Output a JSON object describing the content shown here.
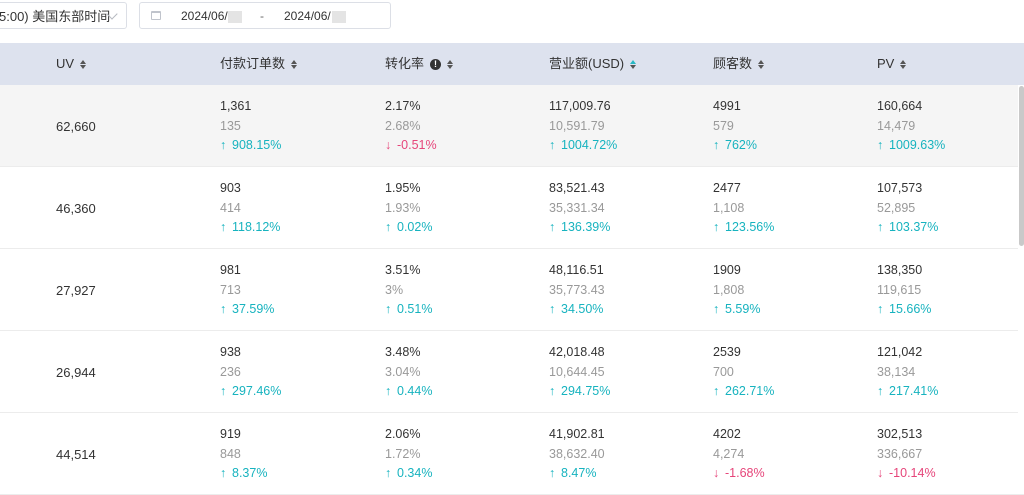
{
  "toolbar": {
    "timezone_label": "5:00) 美国东部时间",
    "date_start": "2024/06/",
    "date_sep": "-",
    "date_end": "2024/06/"
  },
  "columns": [
    {
      "label": "UV"
    },
    {
      "label": "付款订单数"
    },
    {
      "label": "转化率"
    },
    {
      "label": "营业额(USD)"
    },
    {
      "label": "顾客数"
    },
    {
      "label": "PV"
    }
  ],
  "rows": [
    {
      "uv": "62,660",
      "cells": [
        {
          "value": "1,361",
          "prev": "135",
          "change": "908.15%",
          "arrow": "↑"
        },
        {
          "value": "2.17%",
          "prev": "2.68%",
          "change": "-0.51%",
          "arrow": "↓"
        },
        {
          "value": "117,009.76",
          "prev": "10,591.79",
          "change": "1004.72%",
          "arrow": "↑"
        },
        {
          "value": "4991",
          "prev": "579",
          "change": "762%",
          "arrow": "↑"
        },
        {
          "value": "160,664",
          "prev": "14,479",
          "change": "1009.63%",
          "arrow": "↑"
        }
      ]
    },
    {
      "uv": "46,360",
      "cells": [
        {
          "value": "903",
          "prev": "414",
          "change": "118.12%",
          "arrow": "↑"
        },
        {
          "value": "1.95%",
          "prev": "1.93%",
          "change": "0.02%",
          "arrow": "↑"
        },
        {
          "value": "83,521.43",
          "prev": "35,331.34",
          "change": "136.39%",
          "arrow": "↑"
        },
        {
          "value": "2477",
          "prev": "1,108",
          "change": "123.56%",
          "arrow": "↑"
        },
        {
          "value": "107,573",
          "prev": "52,895",
          "change": "103.37%",
          "arrow": "↑"
        }
      ]
    },
    {
      "uv": "27,927",
      "cells": [
        {
          "value": "981",
          "prev": "713",
          "change": "37.59%",
          "arrow": "↑"
        },
        {
          "value": "3.51%",
          "prev": "3%",
          "change": "0.51%",
          "arrow": "↑"
        },
        {
          "value": "48,116.51",
          "prev": "35,773.43",
          "change": "34.50%",
          "arrow": "↑"
        },
        {
          "value": "1909",
          "prev": "1,808",
          "change": "5.59%",
          "arrow": "↑"
        },
        {
          "value": "138,350",
          "prev": "119,615",
          "change": "15.66%",
          "arrow": "↑"
        }
      ]
    },
    {
      "uv": "26,944",
      "cells": [
        {
          "value": "938",
          "prev": "236",
          "change": "297.46%",
          "arrow": "↑"
        },
        {
          "value": "3.48%",
          "prev": "3.04%",
          "change": "0.44%",
          "arrow": "↑"
        },
        {
          "value": "42,018.48",
          "prev": "10,644.45",
          "change": "294.75%",
          "arrow": "↑"
        },
        {
          "value": "2539",
          "prev": "700",
          "change": "262.71%",
          "arrow": "↑"
        },
        {
          "value": "121,042",
          "prev": "38,134",
          "change": "217.41%",
          "arrow": "↑"
        }
      ]
    },
    {
      "uv": "44,514",
      "cells": [
        {
          "value": "919",
          "prev": "848",
          "change": "8.37%",
          "arrow": "↑"
        },
        {
          "value": "2.06%",
          "prev": "1.72%",
          "change": "0.34%",
          "arrow": "↑"
        },
        {
          "value": "41,902.81",
          "prev": "38,632.40",
          "change": "8.47%",
          "arrow": "↑"
        },
        {
          "value": "4202",
          "prev": "4,274",
          "change": "-1.68%",
          "arrow": "↓"
        },
        {
          "value": "302,513",
          "prev": "336,667",
          "change": "-10.14%",
          "arrow": "↓"
        }
      ]
    }
  ],
  "colors": {
    "header_bg": "#dde2ee",
    "positive": "#17b3bf",
    "negative": "#e6457a",
    "highlight_row": "#f5f5f5"
  }
}
